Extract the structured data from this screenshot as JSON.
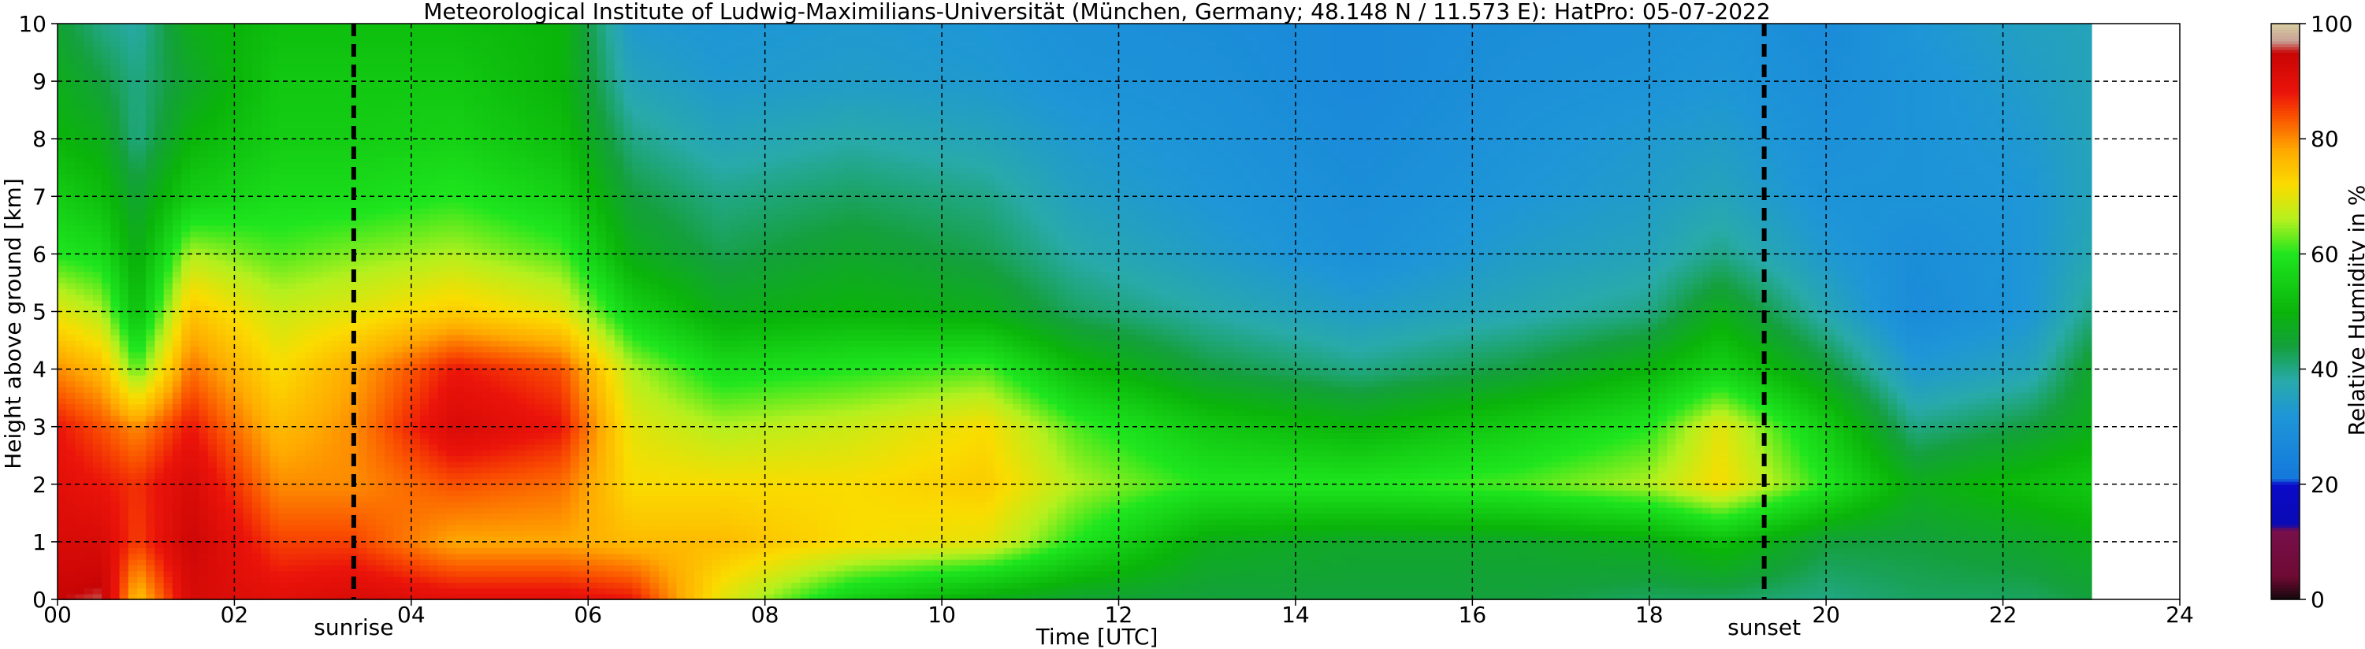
{
  "chart_data": {
    "type": "heatmap",
    "title": "Meteorological Institute of Ludwig-Maximilians-Universität (München, Germany; 48.148 N / 11.573 E):    HatPro: 05-07-2022",
    "xlabel": "Time [UTC]",
    "ylabel": "Height above ground [km]",
    "xlim": [
      0,
      24
    ],
    "ylim": [
      0,
      10
    ],
    "x_data_end": 23.0,
    "x_ticks": [
      "00",
      "02",
      "04",
      "06",
      "08",
      "10",
      "12",
      "14",
      "16",
      "18",
      "20",
      "22",
      "24"
    ],
    "y_ticks": [
      "0",
      "1",
      "2",
      "3",
      "4",
      "5",
      "6",
      "7",
      "8",
      "9",
      "10"
    ],
    "grid": true,
    "colorbar": {
      "label": "Relative Humidity in %",
      "ticks": [
        "0",
        "20",
        "40",
        "60",
        "80",
        "100"
      ],
      "range": [
        0,
        100
      ]
    },
    "markers": [
      {
        "label": "sunrise",
        "x": 3.35
      },
      {
        "label": "sunset",
        "x": 19.3
      }
    ],
    "rh_profiles": [
      {
        "t": 0.0,
        "rh": [
          95,
          92,
          90,
          88,
          80,
          70,
          60,
          55,
          50,
          48,
          45
        ]
      },
      {
        "t": 0.5,
        "rh": [
          96,
          92,
          88,
          84,
          76,
          66,
          58,
          52,
          48,
          44,
          40
        ]
      },
      {
        "t": 0.9,
        "rh": [
          75,
          85,
          86,
          80,
          62,
          52,
          48,
          45,
          40,
          40,
          38
        ]
      },
      {
        "t": 1.5,
        "rh": [
          92,
          94,
          92,
          88,
          82,
          75,
          66,
          55,
          50,
          46,
          48
        ]
      },
      {
        "t": 2.5,
        "rh": [
          90,
          85,
          80,
          76,
          72,
          68,
          62,
          58,
          55,
          54,
          52
        ]
      },
      {
        "t": 3.35,
        "rh": [
          92,
          85,
          80,
          80,
          78,
          70,
          64,
          58,
          55,
          54,
          52
        ]
      },
      {
        "t": 4.5,
        "rh": [
          90,
          78,
          84,
          92,
          88,
          74,
          66,
          60,
          56,
          54,
          52
        ]
      },
      {
        "t": 5.7,
        "rh": [
          90,
          78,
          82,
          88,
          84,
          70,
          62,
          56,
          52,
          50,
          50
        ]
      },
      {
        "t": 6.5,
        "rh": [
          88,
          76,
          72,
          70,
          66,
          56,
          48,
          44,
          40,
          36,
          33
        ]
      },
      {
        "t": 7.5,
        "rh": [
          70,
          76,
          72,
          66,
          58,
          48,
          43,
          40,
          36,
          33,
          32
        ]
      },
      {
        "t": 9.0,
        "rh": [
          55,
          72,
          72,
          68,
          60,
          50,
          46,
          42,
          38,
          34,
          33
        ]
      },
      {
        "t": 10.5,
        "rh": [
          48,
          70,
          74,
          72,
          62,
          48,
          43,
          40,
          36,
          33,
          32
        ]
      },
      {
        "t": 11.5,
        "rh": [
          45,
          60,
          66,
          62,
          52,
          42,
          38,
          35,
          33,
          31,
          30
        ]
      },
      {
        "t": 13.0,
        "rh": [
          44,
          48,
          60,
          54,
          44,
          38,
          34,
          32,
          31,
          30,
          29
        ]
      },
      {
        "t": 14.7,
        "rh": [
          44,
          46,
          60,
          50,
          40,
          34,
          30,
          29,
          28,
          27,
          27
        ]
      },
      {
        "t": 16.5,
        "rh": [
          44,
          46,
          62,
          55,
          44,
          37,
          34,
          32,
          31,
          30,
          29
        ]
      },
      {
        "t": 18.0,
        "rh": [
          42,
          48,
          66,
          60,
          50,
          40,
          36,
          34,
          33,
          31,
          30
        ]
      },
      {
        "t": 18.8,
        "rh": [
          42,
          52,
          72,
          70,
          56,
          48,
          40,
          36,
          34,
          32,
          31
        ]
      },
      {
        "t": 20.0,
        "rh": [
          40,
          44,
          60,
          55,
          45,
          37,
          33,
          31,
          30,
          29,
          28
        ]
      },
      {
        "t": 21.0,
        "rh": [
          42,
          44,
          48,
          40,
          33,
          28,
          29,
          31,
          31,
          31,
          32
        ]
      },
      {
        "t": 22.3,
        "rh": [
          42,
          46,
          52,
          44,
          36,
          32,
          32,
          32,
          33,
          34,
          35
        ]
      },
      {
        "t": 23.0,
        "rh": [
          44,
          48,
          54,
          48,
          46,
          40,
          37,
          36,
          36,
          36,
          36
        ]
      }
    ]
  }
}
